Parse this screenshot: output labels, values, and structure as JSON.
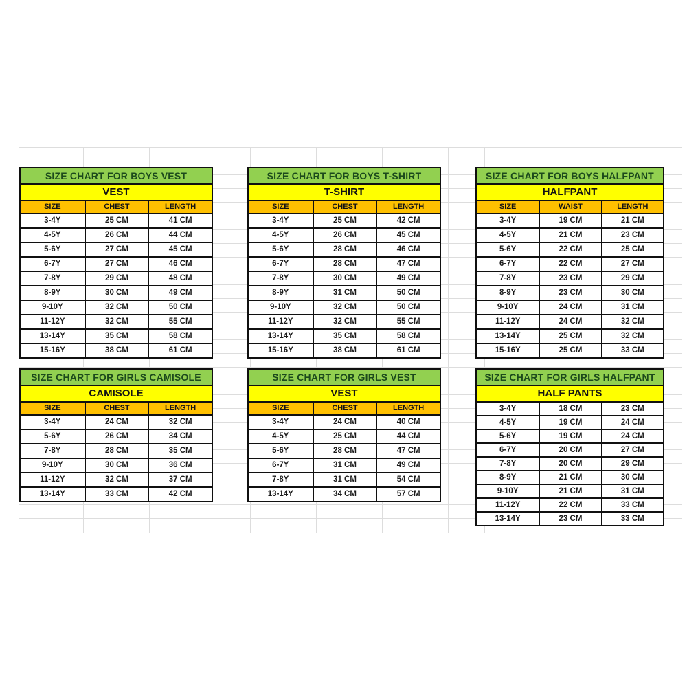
{
  "colors": {
    "title_bg": "#92d050",
    "title_text": "#1c4a1c",
    "subtitle_bg": "#ffff00",
    "header_bg": "#ffc000",
    "cell_bg": "#ffffff",
    "border": "#101010",
    "gridline": "#dddddd"
  },
  "tables": [
    {
      "id": "boys-vest",
      "title": "SIZE CHART FOR BOYS VEST",
      "subtitle": "VEST",
      "columns": [
        "SIZE",
        "CHEST",
        "LENGTH"
      ],
      "rows": [
        [
          "3-4Y",
          "25 CM",
          "41 CM"
        ],
        [
          "4-5Y",
          "26 CM",
          "44 CM"
        ],
        [
          "5-6Y",
          "27 CM",
          "45 CM"
        ],
        [
          "6-7Y",
          "27 CM",
          "46 CM"
        ],
        [
          "7-8Y",
          "29 CM",
          "48 CM"
        ],
        [
          "8-9Y",
          "30 CM",
          "49 CM"
        ],
        [
          "9-10Y",
          "32 CM",
          "50 CM"
        ],
        [
          "11-12Y",
          "32 CM",
          "55 CM"
        ],
        [
          "13-14Y",
          "35 CM",
          "58 CM"
        ],
        [
          "15-16Y",
          "38 CM",
          "61 CM"
        ]
      ]
    },
    {
      "id": "boys-tshirt",
      "title": "SIZE CHART FOR BOYS T-SHIRT",
      "subtitle": "T-SHIRT",
      "columns": [
        "SIZE",
        "CHEST",
        "LENGTH"
      ],
      "rows": [
        [
          "3-4Y",
          "25 CM",
          "42 CM"
        ],
        [
          "4-5Y",
          "26 CM",
          "45 CM"
        ],
        [
          "5-6Y",
          "28 CM",
          "46 CM"
        ],
        [
          "6-7Y",
          "28 CM",
          "47 CM"
        ],
        [
          "7-8Y",
          "30 CM",
          "49 CM"
        ],
        [
          "8-9Y",
          "31 CM",
          "50 CM"
        ],
        [
          "9-10Y",
          "32 CM",
          "50 CM"
        ],
        [
          "11-12Y",
          "32 CM",
          "55 CM"
        ],
        [
          "13-14Y",
          "35 CM",
          "58 CM"
        ],
        [
          "15-16Y",
          "38 CM",
          "61 CM"
        ]
      ]
    },
    {
      "id": "boys-halfpant",
      "title": "SIZE CHART FOR BOYS HALFPANT",
      "subtitle": "HALFPANT",
      "columns": [
        "SIZE",
        "WAIST",
        "LENGTH"
      ],
      "rows": [
        [
          "3-4Y",
          "19 CM",
          "21 CM"
        ],
        [
          "4-5Y",
          "21 CM",
          "23 CM"
        ],
        [
          "5-6Y",
          "22 CM",
          "25 CM"
        ],
        [
          "6-7Y",
          "22 CM",
          "27 CM"
        ],
        [
          "7-8Y",
          "23 CM",
          "29 CM"
        ],
        [
          "8-9Y",
          "23 CM",
          "30 CM"
        ],
        [
          "9-10Y",
          "24 CM",
          "31 CM"
        ],
        [
          "11-12Y",
          "24 CM",
          "32 CM"
        ],
        [
          "13-14Y",
          "25 CM",
          "32 CM"
        ],
        [
          "15-16Y",
          "25 CM",
          "33 CM"
        ]
      ]
    },
    {
      "id": "girls-camisole",
      "title": "SIZE CHART FOR GIRLS CAMISOLE",
      "subtitle": "CAMISOLE",
      "columns": [
        "SIZE",
        "CHEST",
        "LENGTH"
      ],
      "rows": [
        [
          "3-4Y",
          "24 CM",
          "32 CM"
        ],
        [
          "5-6Y",
          "26 CM",
          "34 CM"
        ],
        [
          "7-8Y",
          "28 CM",
          "35 CM"
        ],
        [
          "9-10Y",
          "30 CM",
          "36 CM"
        ],
        [
          "11-12Y",
          "32 CM",
          "37 CM"
        ],
        [
          "13-14Y",
          "33 CM",
          "42 CM"
        ]
      ]
    },
    {
      "id": "girls-vest",
      "title": "SIZE CHART FOR GIRLS VEST",
      "subtitle": "VEST",
      "columns": [
        "SIZE",
        "CHEST",
        "LENGTH"
      ],
      "rows": [
        [
          "3-4Y",
          "24 CM",
          "40 CM"
        ],
        [
          "4-5Y",
          "25 CM",
          "44 CM"
        ],
        [
          "5-6Y",
          "28 CM",
          "47 CM"
        ],
        [
          "6-7Y",
          "31 CM",
          "49 CM"
        ],
        [
          "7-8Y",
          "31 CM",
          "54 CM"
        ],
        [
          "13-14Y",
          "34 CM",
          "57 CM"
        ]
      ]
    },
    {
      "id": "girls-halfpant",
      "title": "SIZE CHART FOR GIRLS HALFPANT",
      "subtitle": "HALF PANTS",
      "columns": [],
      "rows": [
        [
          "3-4Y",
          "18 CM",
          "23 CM"
        ],
        [
          "4-5Y",
          "19 CM",
          "24 CM"
        ],
        [
          "5-6Y",
          "19 CM",
          "24 CM"
        ],
        [
          "6-7Y",
          "20 CM",
          "27 CM"
        ],
        [
          "7-8Y",
          "20 CM",
          "29 CM"
        ],
        [
          "8-9Y",
          "21 CM",
          "30 CM"
        ],
        [
          "9-10Y",
          "21 CM",
          "31 CM"
        ],
        [
          "11-12Y",
          "22 CM",
          "33 CM"
        ],
        [
          "13-14Y",
          "23 CM",
          "33 CM"
        ]
      ]
    }
  ]
}
